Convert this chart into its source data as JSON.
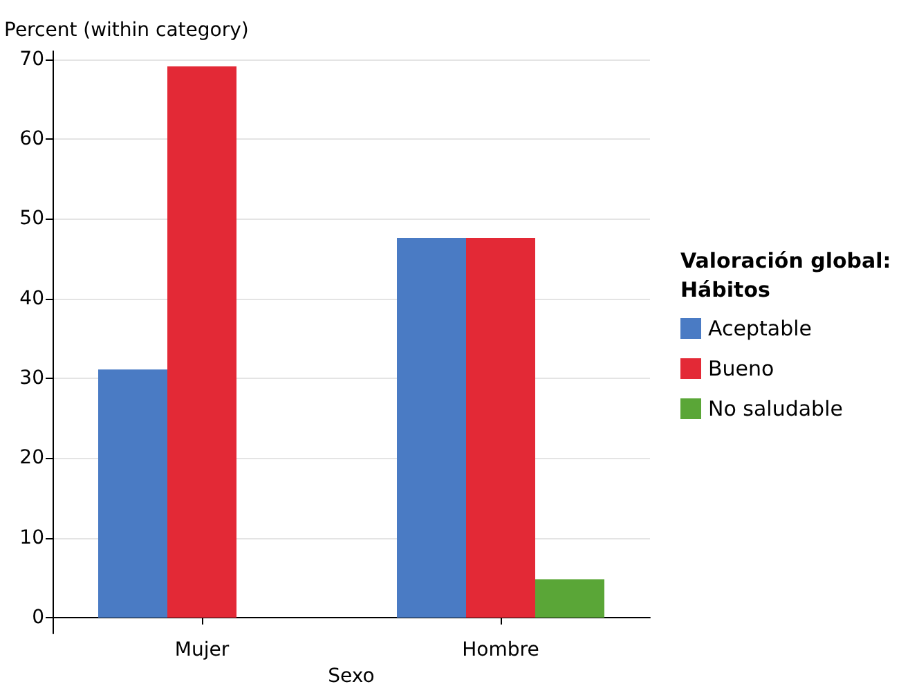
{
  "chart_data": {
    "type": "bar",
    "xlabel": "Sexo",
    "ylabel": "Percent (within category)",
    "legend_title": "Valoración global:\nHábitos",
    "categories": [
      "Mujer",
      "Hombre"
    ],
    "series": [
      {
        "name": "Aceptable",
        "color": "#4a7bc4",
        "values": [
          31.1,
          47.6
        ]
      },
      {
        "name": "Bueno",
        "color": "#e32936",
        "values": [
          69.1,
          47.6
        ]
      },
      {
        "name": "No saludable",
        "color": "#5aa637",
        "values": [
          null,
          4.8
        ]
      }
    ],
    "ylim": [
      -2,
      71
    ],
    "yticks": [
      0,
      10,
      20,
      30,
      40,
      50,
      60,
      70
    ],
    "grid": "y",
    "legend": "right"
  }
}
